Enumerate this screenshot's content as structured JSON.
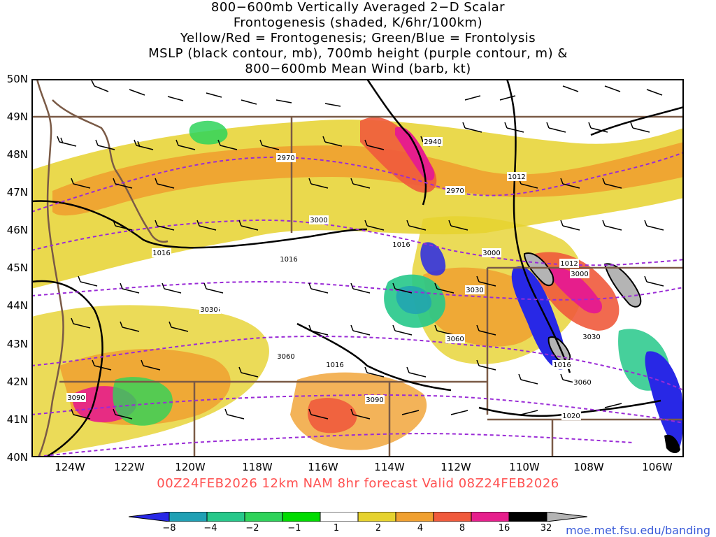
{
  "title": {
    "lines": [
      "800−600mb Vertically Averaged 2−D Scalar",
      "Frontogenesis (shaded, K/6hr/100km)",
      "Yellow/Red = Frontogenesis;  Green/Blue = Frontolysis",
      "MSLP (black contour, mb), 700mb height (purple contour, m) &",
      "800−600mb Mean Wind (barb, kt)"
    ]
  },
  "axes": {
    "lat_labels": [
      "50N",
      "49N",
      "48N",
      "47N",
      "46N",
      "45N",
      "44N",
      "43N",
      "42N",
      "41N",
      "40N"
    ],
    "lon_labels": [
      "124W",
      "122W",
      "120W",
      "118W",
      "116W",
      "114W",
      "112W",
      "110W",
      "108W",
      "106W"
    ],
    "lat_range": [
      40,
      50
    ],
    "lon_range": [
      -125.2,
      -105.0
    ]
  },
  "valid_line": "00Z24FEB2026 12km NAM 8hr forecast Valid 08Z24FEB2026",
  "legend": {
    "labels": [
      "−8",
      "−4",
      "−2",
      "−1",
      "1",
      "2",
      "4",
      "8",
      "16",
      "32"
    ],
    "colors": [
      "#2828e6",
      "#1fa0b4",
      "#26c88a",
      "#2ed35a",
      "#00dc00",
      "#ffffff",
      "#e6d22e",
      "#f0a030",
      "#f05a3c",
      "#e61e8c",
      "#000000",
      "#b4b4b4"
    ]
  },
  "contour_labels": {
    "mslp": [
      "1012",
      "1016",
      "1016",
      "1016",
      "1016",
      "1016",
      "1012",
      "1016",
      "1020"
    ],
    "height": [
      "2940",
      "2970",
      "2970",
      "3000",
      "3000",
      "3000",
      "3030",
      "3030",
      "3030",
      "3060",
      "3060",
      "3060",
      "3090",
      "3090"
    ]
  },
  "credit": "moe.met.fsu.edu/banding"
}
